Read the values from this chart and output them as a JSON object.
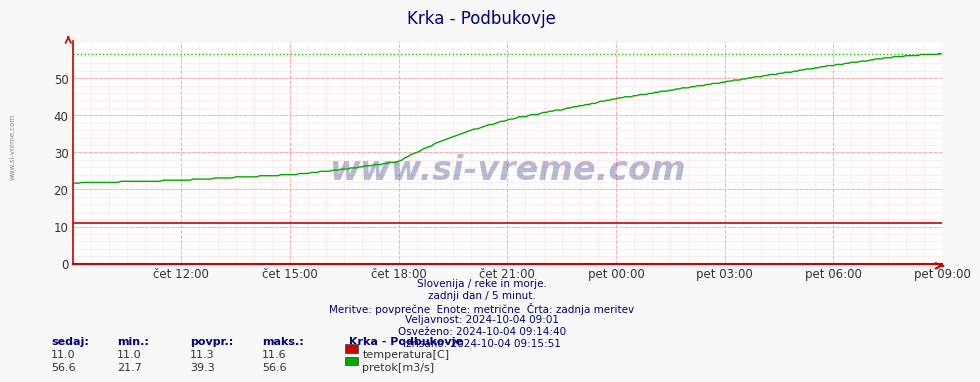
{
  "title": "Krka - Podbukovje",
  "title_color": "#000080",
  "background_color": "#f8f8f8",
  "plot_bg_color": "#ffffff",
  "grid_color_major": "#ffaaaa",
  "grid_color_minor": "#ffdddd",
  "xlim": [
    0,
    288
  ],
  "ylim": [
    0,
    60
  ],
  "yticks": [
    0,
    10,
    20,
    30,
    40,
    50
  ],
  "xtick_labels": [
    "čet 12:00",
    "čet 15:00",
    "čet 18:00",
    "čet 21:00",
    "pet 00:00",
    "pet 03:00",
    "pet 06:00",
    "pet 09:00"
  ],
  "xtick_positions": [
    36,
    72,
    108,
    144,
    180,
    216,
    252,
    288
  ],
  "temp_color": "#cc0000",
  "flow_color": "#00aa00",
  "max_flow_line_color": "#00cc00",
  "axis_color": "#cc0000",
  "temp_value": 11.0,
  "flow_max": 56.6,
  "flow_min": 21.7,
  "footer_lines": [
    "Slovenija / reke in morje.",
    "zadnji dan / 5 minut.",
    "Meritve: povprečne  Enote: metrične  Črta: zadnja meritev",
    "Veljavnost: 2024-10-04 09:01",
    "Osveženo: 2024-10-04 09:14:40",
    "Izrisano: 2024-10-04 09:15:51"
  ],
  "footer_color": "#000080",
  "legend_title": "Krka - Podbukovje",
  "legend_items": [
    {
      "label": "temperatura[C]",
      "color": "#cc0000"
    },
    {
      "label": "pretok[m3/s]",
      "color": "#00aa00"
    }
  ],
  "stats_headers": [
    "sedaj:",
    "min.:",
    "povpr.:",
    "maks.:"
  ],
  "stats_temp": [
    11.0,
    11.0,
    11.3,
    11.6
  ],
  "stats_flow": [
    56.6,
    21.7,
    39.3,
    56.6
  ],
  "watermark": "www.si-vreme.com",
  "left_watermark": "www.si-vreme.com"
}
